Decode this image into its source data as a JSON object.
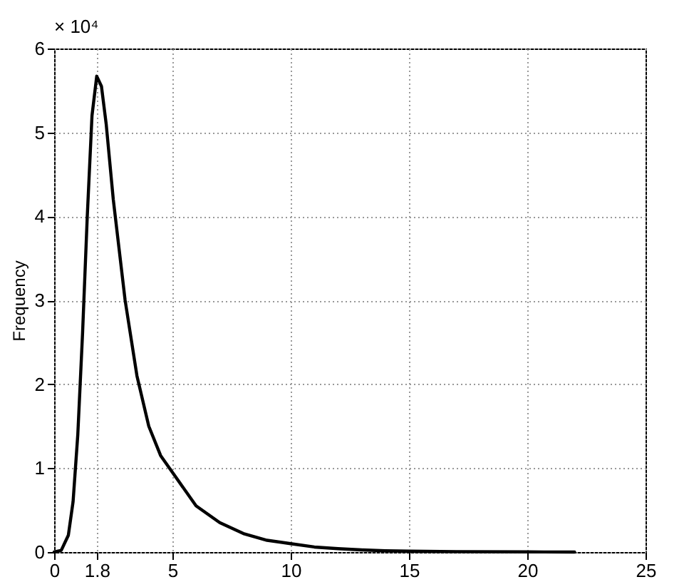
{
  "chart_data": {
    "type": "line",
    "ylabel": "Frequency",
    "annotations": [
      "× 10⁴"
    ],
    "x": [
      0,
      0.3,
      0.6,
      0.8,
      1.0,
      1.2,
      1.4,
      1.6,
      1.8,
      2.0,
      2.2,
      2.5,
      3.0,
      3.5,
      4.0,
      4.5,
      5.0,
      6.0,
      7.0,
      8.0,
      9.0,
      10.0,
      11.0,
      12.0,
      13.0,
      14.0,
      15.0,
      17.0,
      20.0,
      22.0
    ],
    "series": [
      {
        "color": "#000000",
        "values": [
          0,
          0.02,
          0.2,
          0.6,
          1.4,
          2.6,
          4.0,
          5.2,
          5.67,
          5.55,
          5.1,
          4.2,
          3.0,
          2.1,
          1.5,
          1.15,
          0.95,
          0.55,
          0.35,
          0.22,
          0.14,
          0.1,
          0.06,
          0.04,
          0.025,
          0.015,
          0.01,
          0.005,
          0.002,
          0
        ]
      }
    ],
    "xlim": [
      0,
      25
    ],
    "xticks": [
      0,
      1.8,
      5,
      10,
      15,
      20,
      25
    ],
    "ylim": [
      0,
      6
    ],
    "yticks": [
      0,
      1,
      2,
      3,
      4,
      5,
      6
    ],
    "grid": true,
    "line_style": "solid",
    "marker": "none"
  }
}
